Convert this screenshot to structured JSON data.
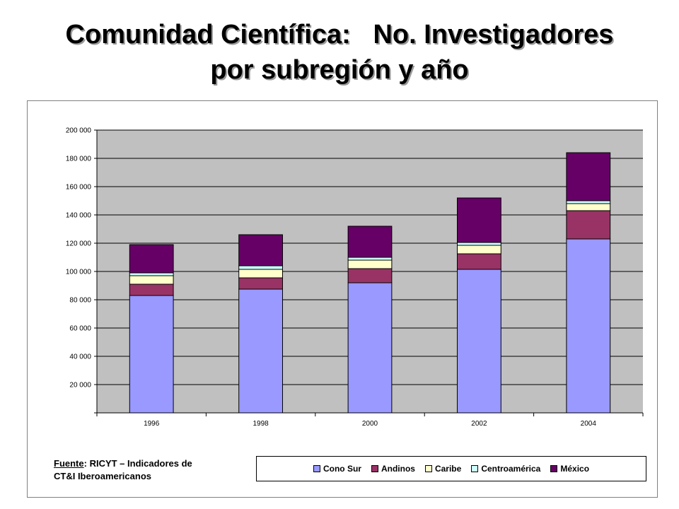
{
  "title": {
    "line1": "Comunidad Científica:   No. Investigadores",
    "line2": "por subregión y año"
  },
  "source": {
    "label": "Fuente",
    "text1": ":  RICYT – Indicadores de",
    "text2": "CT&I Iberoamericanos"
  },
  "chart_data": {
    "type": "bar",
    "stacked": true,
    "categories": [
      "1996",
      "1998",
      "2000",
      "2002",
      "2004"
    ],
    "ylim": [
      0,
      200000
    ],
    "yticks": [
      20000,
      40000,
      60000,
      80000,
      100000,
      120000,
      140000,
      160000,
      180000,
      200000
    ],
    "ytick_labels": [
      "20 000",
      "40 000",
      "60 000",
      "80 000",
      "100 000",
      "120 000",
      "140 000",
      "160 000",
      "180 000",
      "200 000"
    ],
    "grid": true,
    "legend_position": "bottom-right",
    "series": [
      {
        "name": "Cono Sur",
        "color": "#9999ff",
        "values": [
          83000,
          87500,
          92000,
          101500,
          123000
        ]
      },
      {
        "name": "Andinos",
        "color": "#993366",
        "values": [
          8000,
          8000,
          10000,
          11000,
          20000
        ]
      },
      {
        "name": "Caribe",
        "color": "#ffffcc",
        "values": [
          6000,
          6000,
          6000,
          6000,
          5000
        ]
      },
      {
        "name": "Centroamérica",
        "color": "#ccffff",
        "values": [
          2000,
          2500,
          2000,
          2000,
          2000
        ]
      },
      {
        "name": "México",
        "color": "#660066",
        "values": [
          20000,
          22000,
          22000,
          31500,
          34000
        ]
      }
    ]
  }
}
